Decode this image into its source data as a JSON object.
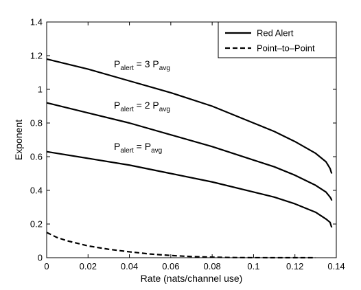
{
  "chart_data": {
    "type": "line",
    "title": "",
    "xlabel": "Rate (nats/channel use)",
    "ylabel": "Exponent",
    "xlim": [
      0,
      0.14
    ],
    "ylim": [
      0,
      1.4
    ],
    "xticks": [
      0,
      0.02,
      0.04,
      0.06,
      0.08,
      0.1,
      0.12,
      0.14
    ],
    "xtick_labels": [
      "0",
      "0.02",
      "0.04",
      "0.06",
      "0.08",
      "0.1",
      "0.12",
      "0.14"
    ],
    "yticks": [
      0,
      0.2,
      0.4,
      0.6,
      0.8,
      1,
      1.2,
      1.4
    ],
    "ytick_labels": [
      "0",
      "0.2",
      "0.4",
      "0.6",
      "0.8",
      "1",
      "1.2",
      "1.4"
    ],
    "grid": false,
    "legend_position": "top-right",
    "legend": [
      {
        "label": "Red Alert",
        "style": "solid"
      },
      {
        "label": "Point–to–Point",
        "style": "dashed"
      }
    ],
    "series": [
      {
        "group": "Red Alert",
        "style": "solid",
        "annotation": {
          "p1": "P",
          "s1": "alert",
          "mid": " = 3 P",
          "s2": "avg"
        },
        "x": [
          0,
          0.02,
          0.04,
          0.06,
          0.08,
          0.1,
          0.11,
          0.12,
          0.13,
          0.135,
          0.137,
          0.1375,
          0.1378
        ],
        "y": [
          1.18,
          1.12,
          1.05,
          0.98,
          0.9,
          0.8,
          0.75,
          0.69,
          0.62,
          0.57,
          0.53,
          0.51,
          0.5
        ]
      },
      {
        "group": "Red Alert",
        "style": "solid",
        "annotation": {
          "p1": "P",
          "s1": "alert",
          "mid": " = 2 P",
          "s2": "avg"
        },
        "x": [
          0,
          0.02,
          0.04,
          0.06,
          0.08,
          0.1,
          0.11,
          0.12,
          0.13,
          0.135,
          0.137,
          0.1375,
          0.1378
        ],
        "y": [
          0.92,
          0.86,
          0.8,
          0.73,
          0.66,
          0.58,
          0.54,
          0.49,
          0.43,
          0.39,
          0.36,
          0.35,
          0.34
        ]
      },
      {
        "group": "Red Alert",
        "style": "solid",
        "annotation": {
          "p1": "P",
          "s1": "alert",
          "mid": " = P",
          "s2": "avg"
        },
        "x": [
          0,
          0.02,
          0.04,
          0.06,
          0.08,
          0.1,
          0.11,
          0.12,
          0.13,
          0.135,
          0.137,
          0.1375,
          0.1378
        ],
        "y": [
          0.63,
          0.59,
          0.55,
          0.5,
          0.45,
          0.39,
          0.36,
          0.32,
          0.27,
          0.23,
          0.21,
          0.19,
          0.18
        ]
      },
      {
        "group": "Point–to–Point",
        "style": "dashed",
        "x": [
          0,
          0.005,
          0.01,
          0.02,
          0.03,
          0.04,
          0.05,
          0.06,
          0.07,
          0.08,
          0.09,
          0.1,
          0.11,
          0.12,
          0.13
        ],
        "y": [
          0.15,
          0.12,
          0.1,
          0.07,
          0.05,
          0.035,
          0.022,
          0.013,
          0.007,
          0.003,
          0.001,
          0.0003,
          0.0001,
          0,
          0
        ]
      }
    ]
  }
}
